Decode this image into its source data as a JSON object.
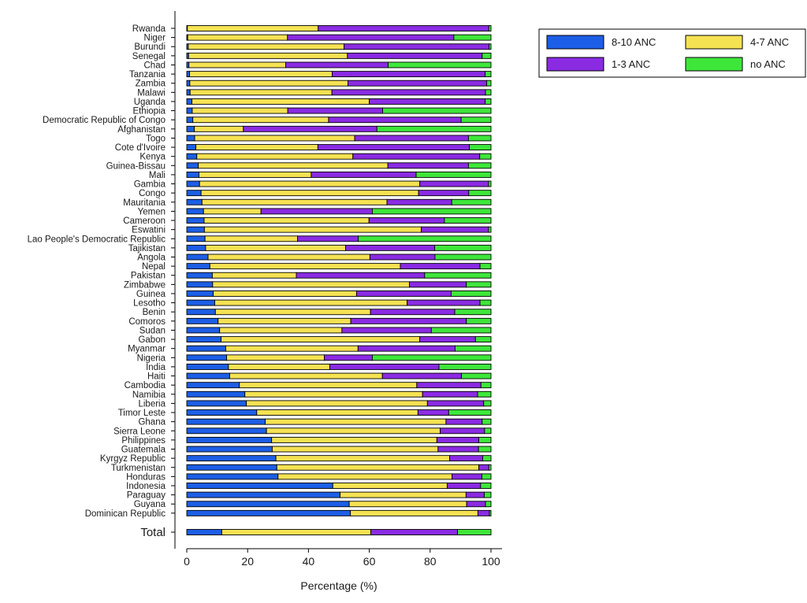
{
  "chart_data": {
    "type": "bar",
    "orientation": "horizontal",
    "stacked": "percent",
    "xlabel": "Percentage (%)",
    "ylabel": "",
    "xlim": [
      0,
      100
    ],
    "xticks": [
      0,
      20,
      40,
      60,
      80,
      100
    ],
    "grid": false,
    "legend_position": "top-right",
    "categories": [
      "Rwanda",
      "Niger",
      "Burundi",
      "Senegal",
      "Chad",
      "Tanzania",
      "Zambia",
      "Malawi",
      "Uganda",
      "Ethiopia",
      "Democratic Republic of Congo",
      "Afghanistan",
      "Togo",
      "Cote d'Ivoire",
      "Kenya",
      "Guinea-Bissau",
      "Mali",
      "Gambia",
      "Congo",
      "Mauritania",
      "Yemen",
      "Cameroon",
      "Eswatini",
      "Lao People's Democratic Republic",
      "Tajikistan",
      "Angola",
      "Nepal",
      "Pakistan",
      "Zimbabwe",
      "Guinea",
      "Lesotho",
      "Benin",
      "Comoros",
      "Sudan",
      "Gabon",
      "Myanmar",
      "Nigeria",
      "India",
      "Haiti",
      "Cambodia",
      "Namibia",
      "Liberia",
      "Timor Leste",
      "Ghana",
      "Sierra Leone",
      "Philippines",
      "Guatemala",
      "Kyrgyz Republic",
      "Turkmenistan",
      "Honduras",
      "Indonesia",
      "Paraguay",
      "Guyana",
      "Dominican Republic"
    ],
    "total_label": "Total",
    "series": [
      {
        "name": "8-10 ANC",
        "color": "#1d5ee6",
        "values": [
          0.2,
          0.3,
          0.5,
          0.6,
          0.7,
          0.9,
          1.0,
          1.1,
          1.7,
          1.8,
          2.0,
          2.5,
          2.6,
          3.0,
          3.3,
          3.8,
          4.0,
          4.2,
          4.7,
          5.0,
          5.5,
          5.7,
          5.8,
          6.0,
          6.2,
          7.0,
          7.6,
          8.4,
          8.5,
          8.7,
          9.2,
          9.4,
          10.3,
          10.8,
          11.3,
          12.8,
          13.1,
          13.7,
          14.1,
          17.3,
          19.1,
          19.6,
          23.0,
          25.8,
          26.2,
          27.9,
          28.1,
          29.3,
          29.6,
          30.0,
          48.0,
          50.4,
          53.4,
          53.8
        ]
      },
      {
        "name": "4-7 ANC",
        "color": "#f5e253",
        "values": [
          43.0,
          32.8,
          51.2,
          52.2,
          31.8,
          46.9,
          52.0,
          46.6,
          58.3,
          31.4,
          44.6,
          16.1,
          52.6,
          40.1,
          51.3,
          62.3,
          36.9,
          72.4,
          71.5,
          60.8,
          18.9,
          54.2,
          71.3,
          30.4,
          46.0,
          53.2,
          62.6,
          27.6,
          64.7,
          47.1,
          63.2,
          51.0,
          43.6,
          40.2,
          65.3,
          43.5,
          32.1,
          33.3,
          50.2,
          58.3,
          58.4,
          59.5,
          53.0,
          59.4,
          57.1,
          54.3,
          54.5,
          57.1,
          66.4,
          57.2,
          37.6,
          41.4,
          38.6,
          41.9
        ]
      },
      {
        "name": "1-3 ANC",
        "color": "#8a2be2",
        "values": [
          56.1,
          54.7,
          47.7,
          44.3,
          33.7,
          50.3,
          45.6,
          50.5,
          38.1,
          31.2,
          43.6,
          43.9,
          37.4,
          49.8,
          41.7,
          26.5,
          34.5,
          22.6,
          16.5,
          21.3,
          36.6,
          24.8,
          22.1,
          20.0,
          29.3,
          21.4,
          26.2,
          42.2,
          18.7,
          31.1,
          24.0,
          27.7,
          38.0,
          29.4,
          18.3,
          31.9,
          15.8,
          35.9,
          26.0,
          21.1,
          18.1,
          18.5,
          10.1,
          11.9,
          14.6,
          13.8,
          13.3,
          10.9,
          3.3,
          9.8,
          11.0,
          6.0,
          6.2,
          3.8
        ]
      },
      {
        "name": "no ANC",
        "color": "#3ee63a",
        "values": [
          0.7,
          12.2,
          0.6,
          2.9,
          33.8,
          1.9,
          1.4,
          1.8,
          1.9,
          35.6,
          9.8,
          37.5,
          7.4,
          7.1,
          3.7,
          7.4,
          24.6,
          0.8,
          7.3,
          12.9,
          39.0,
          15.3,
          0.8,
          43.6,
          18.5,
          18.4,
          3.6,
          21.8,
          8.1,
          13.1,
          3.6,
          11.9,
          8.1,
          19.6,
          5.1,
          11.8,
          39.0,
          17.1,
          9.7,
          3.3,
          4.4,
          2.4,
          13.9,
          2.9,
          2.1,
          4.0,
          4.1,
          2.7,
          0.7,
          3.0,
          3.4,
          2.2,
          1.8,
          0.5
        ]
      }
    ],
    "total_values": [
      11.5,
      49.0,
      28.5,
      11.0
    ]
  }
}
